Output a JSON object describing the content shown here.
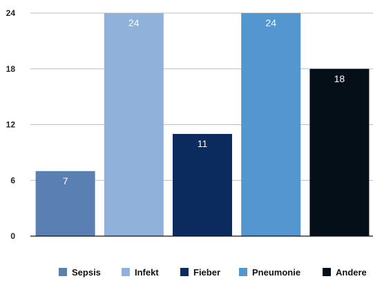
{
  "chart_data": {
    "type": "bar",
    "title": "",
    "xlabel": "",
    "ylabel": "",
    "ylim": [
      0,
      24
    ],
    "yticks": [
      0,
      6,
      12,
      18,
      24
    ],
    "grid": true,
    "legend_position": "bottom",
    "categories": [
      "Sepsis",
      "Infekt",
      "Fieber",
      "Pneumonie",
      "Andere"
    ],
    "values": [
      7,
      24,
      11,
      24,
      18
    ],
    "data_labels": [
      "7",
      "24",
      "11",
      "24",
      "18"
    ],
    "colors": [
      "#5a7fb3",
      "#8fb1da",
      "#0b2b5e",
      "#5496d0",
      "#050f17"
    ]
  }
}
